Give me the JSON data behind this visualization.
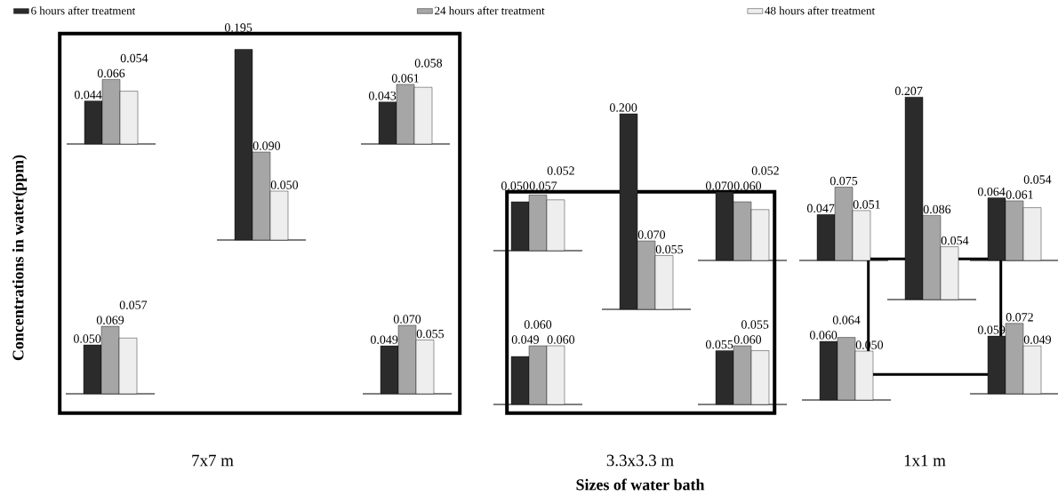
{
  "chart_data": [
    {
      "type": "bar",
      "categories": [
        null
      ],
      "legend": "top",
      "ylabel": "Concentrations in water(ppm)",
      "series": [
        {
          "name": "6 hours after treatment",
          "color": "#2b2b2b",
          "values": [
            0.044
          ],
          "value_labels": [
            "0.044"
          ]
        },
        {
          "name": "24 hours after treatment",
          "color": "#a6a6a6",
          "values": [
            0.066
          ],
          "value_labels": [
            "0.066"
          ]
        },
        {
          "name": "48 hours after treatment",
          "color": "#eeeeee",
          "values": [
            0.054
          ],
          "value_labels": [
            "0.054"
          ]
        }
      ]
    },
    {
      "type": "bar",
      "categories": [
        null
      ],
      "xlabel": "7x7 m",
      "series": [
        {
          "color": "#2b2b2b",
          "values": [
            0.195
          ],
          "value_labels": [
            "0.195"
          ]
        },
        {
          "color": "#a6a6a6",
          "values": [
            0.09
          ],
          "value_labels": [
            "0.090"
          ]
        },
        {
          "color": "#eeeeee",
          "values": [
            0.05
          ],
          "value_labels": [
            "0.050"
          ]
        }
      ]
    },
    {
      "type": "bar",
      "categories": [
        null
      ],
      "series": [
        {
          "color": "#2b2b2b",
          "values": [
            0.043
          ],
          "value_labels": [
            "0.043"
          ]
        },
        {
          "color": "#a6a6a6",
          "values": [
            0.061
          ],
          "value_labels": [
            "0.061"
          ]
        },
        {
          "color": "#eeeeee",
          "values": [
            0.058
          ],
          "value_labels": [
            "0.058"
          ]
        }
      ]
    },
    {
      "type": "bar",
      "categories": [
        null
      ],
      "series": [
        {
          "color": "#2b2b2b",
          "values": [
            0.05
          ],
          "value_labels": [
            "0.050"
          ]
        },
        {
          "color": "#a6a6a6",
          "values": [
            0.069
          ],
          "value_labels": [
            "0.069"
          ]
        },
        {
          "color": "#eeeeee",
          "values": [
            0.057
          ],
          "value_labels": [
            "0.057"
          ]
        }
      ]
    },
    {
      "type": "bar",
      "categories": [
        null
      ],
      "series": [
        {
          "color": "#2b2b2b",
          "values": [
            0.049
          ],
          "value_labels": [
            "0.049"
          ]
        },
        {
          "color": "#a6a6a6",
          "values": [
            0.07
          ],
          "value_labels": [
            "0.070"
          ]
        },
        {
          "color": "#eeeeee",
          "values": [
            0.055
          ],
          "value_labels": [
            "0.055"
          ]
        }
      ]
    },
    {
      "type": "bar",
      "categories": [
        null
      ],
      "series": [
        {
          "color": "#2b2b2b",
          "values": [
            0.05
          ],
          "value_labels": [
            "0.050"
          ]
        },
        {
          "color": "#a6a6a6",
          "values": [
            0.057
          ],
          "value_labels": [
            "0.057"
          ]
        },
        {
          "color": "#eeeeee",
          "values": [
            0.052
          ],
          "value_labels": [
            "0.052"
          ]
        }
      ]
    },
    {
      "type": "bar",
      "categories": [
        null
      ],
      "xlabel": "3.3x3.3 m",
      "annotations": [
        "Sizes of water bath"
      ],
      "series": [
        {
          "color": "#2b2b2b",
          "values": [
            0.2
          ],
          "value_labels": [
            "0.200"
          ]
        },
        {
          "color": "#a6a6a6",
          "values": [
            0.07
          ],
          "value_labels": [
            "0.070"
          ]
        },
        {
          "color": "#eeeeee",
          "values": [
            0.055
          ],
          "value_labels": [
            "0.055"
          ]
        }
      ]
    },
    {
      "type": "bar",
      "categories": [
        null
      ],
      "series": [
        {
          "color": "#2b2b2b",
          "values": [
            0.07
          ],
          "value_labels": [
            "0.070"
          ]
        },
        {
          "color": "#a6a6a6",
          "values": [
            0.06
          ],
          "value_labels": [
            "0.060"
          ]
        },
        {
          "color": "#eeeeee",
          "values": [
            0.052
          ],
          "value_labels": [
            "0.052"
          ]
        }
      ]
    },
    {
      "type": "bar",
      "categories": [
        null
      ],
      "series": [
        {
          "color": "#2b2b2b",
          "values": [
            0.049
          ],
          "value_labels": [
            "0.049"
          ]
        },
        {
          "color": "#a6a6a6",
          "values": [
            0.06
          ],
          "value_labels": [
            "0.060"
          ]
        },
        {
          "color": "#eeeeee",
          "values": [
            0.06
          ],
          "value_labels": [
            "0.060"
          ]
        }
      ]
    },
    {
      "type": "bar",
      "categories": [
        null
      ],
      "series": [
        {
          "color": "#2b2b2b",
          "values": [
            0.055
          ],
          "value_labels": [
            "0.055"
          ]
        },
        {
          "color": "#a6a6a6",
          "values": [
            0.06
          ],
          "value_labels": [
            "0.060"
          ]
        },
        {
          "color": "#eeeeee",
          "values": [
            0.055
          ],
          "value_labels": [
            "0.055"
          ]
        }
      ]
    },
    {
      "type": "bar",
      "categories": [
        null
      ],
      "series": [
        {
          "color": "#2b2b2b",
          "values": [
            0.047
          ],
          "value_labels": [
            "0.047"
          ]
        },
        {
          "color": "#a6a6a6",
          "values": [
            0.075
          ],
          "value_labels": [
            "0.075"
          ]
        },
        {
          "color": "#eeeeee",
          "values": [
            0.051
          ],
          "value_labels": [
            "0.051"
          ]
        }
      ]
    },
    {
      "type": "bar",
      "categories": [
        null
      ],
      "xlabel": "1x1 m",
      "series": [
        {
          "color": "#2b2b2b",
          "values": [
            0.207
          ],
          "value_labels": [
            "0.207"
          ]
        },
        {
          "color": "#a6a6a6",
          "values": [
            0.086
          ],
          "value_labels": [
            "0.086"
          ]
        },
        {
          "color": "#eeeeee",
          "values": [
            0.054
          ],
          "value_labels": [
            "0.054"
          ]
        }
      ]
    },
    {
      "type": "bar",
      "categories": [
        null
      ],
      "series": [
        {
          "color": "#2b2b2b",
          "values": [
            0.064
          ],
          "value_labels": [
            "0.064"
          ]
        },
        {
          "color": "#a6a6a6",
          "values": [
            0.061
          ],
          "value_labels": [
            "0.061"
          ]
        },
        {
          "color": "#eeeeee",
          "values": [
            0.054
          ],
          "value_labels": [
            "0.054"
          ]
        }
      ]
    },
    {
      "type": "bar",
      "categories": [
        null
      ],
      "series": [
        {
          "color": "#2b2b2b",
          "values": [
            0.06
          ],
          "value_labels": [
            "0.060"
          ]
        },
        {
          "color": "#a6a6a6",
          "values": [
            0.064
          ],
          "value_labels": [
            "0.064"
          ]
        },
        {
          "color": "#eeeeee",
          "values": [
            0.05
          ],
          "value_labels": [
            "0.050"
          ]
        }
      ]
    },
    {
      "type": "bar",
      "categories": [
        null
      ],
      "series": [
        {
          "color": "#2b2b2b",
          "values": [
            0.059
          ],
          "value_labels": [
            "0.059"
          ]
        },
        {
          "color": "#a6a6a6",
          "values": [
            0.072
          ],
          "value_labels": [
            "0.072"
          ]
        },
        {
          "color": "#eeeeee",
          "values": [
            0.049
          ],
          "value_labels": [
            "0.049"
          ]
        }
      ]
    }
  ]
}
